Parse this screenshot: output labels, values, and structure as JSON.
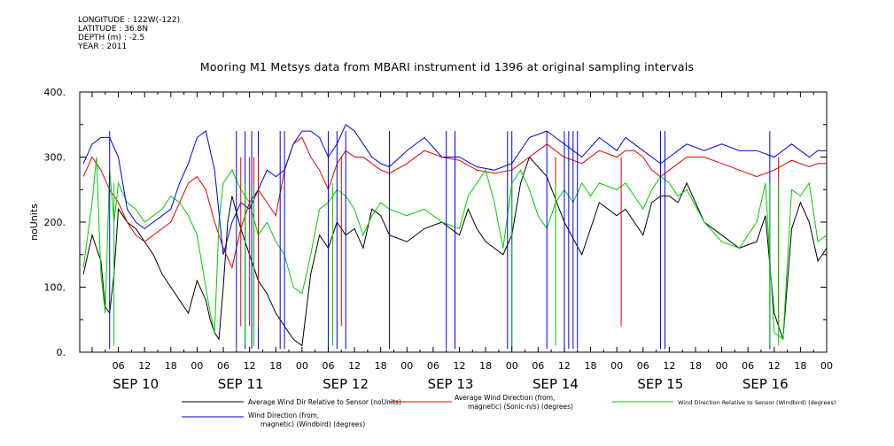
{
  "meta": {
    "longitude": "LONGITUDE : 122W(-122)",
    "latitude": "LATITUDE : 36.8N",
    "depth": "DEPTH (m) : -2.5",
    "year": "YEAR : 2011"
  },
  "chart_data": {
    "type": "line",
    "title": "Mooring M1 Metsys data from MBARI instrument id 1396 at original sampling intervals",
    "ylabel": "noUnits",
    "ylim": [
      0,
      400
    ],
    "y_ticks": [
      0,
      100,
      200,
      300,
      400
    ],
    "y_tick_labels": [
      "0.",
      "100.",
      "200.",
      "300.",
      "400."
    ],
    "xlim_hours": [
      0,
      168
    ],
    "x_hour_labels": [
      "06",
      "12",
      "18",
      "00",
      "06",
      "12",
      "18",
      "00",
      "06",
      "12",
      "18",
      "00",
      "06",
      "12",
      "18",
      "00",
      "06",
      "12",
      "18",
      "00",
      "06",
      "12",
      "18",
      "00",
      "06",
      "12",
      "18",
      "00"
    ],
    "day_labels": [
      "SEP 10",
      "SEP 11",
      "SEP 12",
      "SEP 13",
      "SEP 14",
      "SEP 15",
      "SEP 16"
    ],
    "x_unit": "hours since 2011-09-10 00:00",
    "grid": false,
    "legend_position": "bottom",
    "colors": {
      "black": "#000000",
      "red": "#e00000",
      "green": "#00cc00",
      "blue": "#0000dd"
    },
    "series": [
      {
        "name": "Average Wind Dir Relative to Sensor (noUnits)",
        "color": "#000000",
        "x": [
          -2,
          0,
          2,
          3,
          4,
          5,
          6,
          8,
          10,
          12,
          14,
          16,
          18,
          20,
          22,
          24,
          26,
          27,
          28,
          29,
          30,
          31,
          32,
          34,
          36,
          38,
          40,
          42,
          44,
          46,
          48,
          50,
          52,
          54,
          56,
          58,
          60,
          62,
          64,
          66,
          68,
          72,
          76,
          80,
          84,
          86,
          88,
          90,
          92,
          94,
          96,
          98,
          100,
          104,
          108,
          112,
          116,
          120,
          122,
          124,
          126,
          128,
          130,
          132,
          134,
          136,
          140,
          144,
          148,
          152,
          154,
          156,
          158,
          160,
          162,
          164,
          166,
          168
        ],
        "y": [
          120,
          180,
          140,
          70,
          60,
          120,
          220,
          200,
          190,
          170,
          150,
          120,
          100,
          80,
          60,
          110,
          80,
          50,
          30,
          20,
          100,
          200,
          240,
          190,
          150,
          110,
          90,
          60,
          40,
          20,
          10,
          120,
          180,
          160,
          200,
          180,
          190,
          160,
          220,
          210,
          180,
          170,
          190,
          200,
          180,
          220,
          190,
          170,
          160,
          150,
          180,
          260,
          300,
          270,
          200,
          150,
          230,
          210,
          220,
          200,
          180,
          230,
          240,
          240,
          230,
          260,
          200,
          180,
          160,
          170,
          210,
          60,
          20,
          190,
          230,
          200,
          140,
          160
        ]
      },
      {
        "name": "Average Wind Direction (from, magnetic) (Sonic-n/s) (degrees)",
        "color": "#e00000",
        "x": [
          -2,
          0,
          2,
          4,
          6,
          8,
          10,
          12,
          14,
          16,
          18,
          20,
          22,
          24,
          26,
          28,
          30,
          32,
          34,
          36,
          38,
          40,
          42,
          44,
          46,
          48,
          50,
          52,
          54,
          56,
          58,
          60,
          62,
          64,
          66,
          68,
          72,
          76,
          80,
          84,
          88,
          92,
          96,
          100,
          104,
          108,
          112,
          116,
          120,
          122,
          124,
          126,
          128,
          130,
          132,
          134,
          136,
          140,
          144,
          148,
          152,
          156,
          160,
          164,
          166,
          168
        ],
        "y": [
          270,
          300,
          280,
          250,
          230,
          200,
          180,
          170,
          180,
          190,
          200,
          230,
          260,
          270,
          250,
          200,
          160,
          130,
          190,
          230,
          250,
          230,
          210,
          280,
          320,
          330,
          300,
          280,
          250,
          290,
          310,
          300,
          300,
          290,
          280,
          275,
          290,
          310,
          300,
          295,
          280,
          275,
          280,
          300,
          320,
          300,
          290,
          310,
          300,
          310,
          310,
          300,
          280,
          270,
          280,
          290,
          300,
          300,
          290,
          280,
          270,
          280,
          295,
          285,
          290,
          290
        ]
      },
      {
        "name": "Wind Direction Relative to Sensor (Windbird) (degrees)",
        "color": "#00cc00",
        "x": [
          -2,
          0,
          1,
          2,
          3,
          4,
          5,
          6,
          8,
          10,
          12,
          14,
          16,
          18,
          20,
          22,
          24,
          26,
          27,
          28,
          29,
          30,
          32,
          34,
          36,
          38,
          40,
          42,
          44,
          46,
          48,
          50,
          52,
          54,
          56,
          58,
          60,
          62,
          64,
          66,
          68,
          72,
          76,
          80,
          84,
          86,
          88,
          90,
          92,
          94,
          96,
          98,
          100,
          102,
          104,
          106,
          108,
          110,
          112,
          114,
          116,
          120,
          122,
          124,
          126,
          128,
          130,
          132,
          134,
          136,
          140,
          144,
          148,
          152,
          154,
          156,
          158,
          160,
          162,
          164,
          166,
          168
        ],
        "y": [
          130,
          230,
          300,
          120,
          60,
          280,
          200,
          260,
          230,
          220,
          200,
          210,
          220,
          240,
          230,
          210,
          180,
          100,
          60,
          30,
          200,
          260,
          280,
          250,
          230,
          180,
          200,
          170,
          150,
          100,
          90,
          150,
          220,
          230,
          250,
          240,
          220,
          180,
          210,
          230,
          220,
          210,
          220,
          200,
          190,
          240,
          260,
          280,
          230,
          160,
          260,
          280,
          250,
          210,
          190,
          230,
          250,
          230,
          260,
          240,
          260,
          250,
          260,
          240,
          220,
          250,
          270,
          260,
          240,
          250,
          200,
          170,
          160,
          200,
          260,
          30,
          20,
          250,
          240,
          260,
          170,
          180
        ]
      },
      {
        "name": "Wind Direction (from, magnetic) (Windbird) (degrees)",
        "color": "#0000dd",
        "x": [
          -2,
          0,
          2,
          4,
          6,
          8,
          10,
          12,
          14,
          16,
          18,
          20,
          22,
          24,
          26,
          28,
          30,
          32,
          34,
          36,
          38,
          40,
          42,
          44,
          46,
          48,
          50,
          52,
          54,
          56,
          58,
          60,
          62,
          64,
          66,
          68,
          72,
          76,
          80,
          84,
          88,
          92,
          96,
          100,
          104,
          108,
          112,
          116,
          120,
          122,
          124,
          126,
          128,
          130,
          132,
          134,
          136,
          140,
          144,
          148,
          152,
          156,
          160,
          164,
          166,
          168
        ],
        "y": [
          290,
          320,
          330,
          330,
          300,
          220,
          200,
          190,
          200,
          210,
          220,
          260,
          290,
          330,
          340,
          280,
          150,
          200,
          230,
          220,
          250,
          280,
          270,
          280,
          320,
          340,
          340,
          330,
          300,
          320,
          350,
          340,
          320,
          300,
          290,
          285,
          310,
          330,
          300,
          300,
          285,
          280,
          290,
          330,
          340,
          320,
          300,
          330,
          310,
          330,
          320,
          310,
          300,
          290,
          300,
          310,
          320,
          310,
          320,
          310,
          310,
          300,
          320,
          300,
          310,
          310
        ]
      }
    ],
    "spikes": [
      {
        "series": 3,
        "x": [
          4,
          33,
          35,
          36.5,
          38,
          43,
          44,
          54,
          56,
          58,
          68,
          81,
          83,
          95,
          96,
          104,
          108,
          109,
          110,
          111,
          130,
          131,
          155
        ],
        "from": 340,
        "to": 5
      },
      {
        "series": 1,
        "x": [
          34,
          36,
          37,
          38,
          57,
          106,
          121,
          157
        ],
        "from": 300,
        "to": 40
      },
      {
        "series": 2,
        "x": [
          5,
          35,
          37,
          55,
          96,
          106,
          155,
          157
        ],
        "from": 260,
        "to": 10
      }
    ]
  },
  "legend": {
    "black": "Average Wind Dir Relative to Sensor (noUnits)",
    "red_line1": "Average Wind Direction (from,",
    "red_line2": "magnetic) (Sonic-n/s) (degrees)",
    "green": "Wind Direction Relative to Sensor (Windbird) (degrees)",
    "blue_line1": "Wind Direction (from,",
    "blue_line2": "magnetic) (Windbird) (degrees)"
  }
}
